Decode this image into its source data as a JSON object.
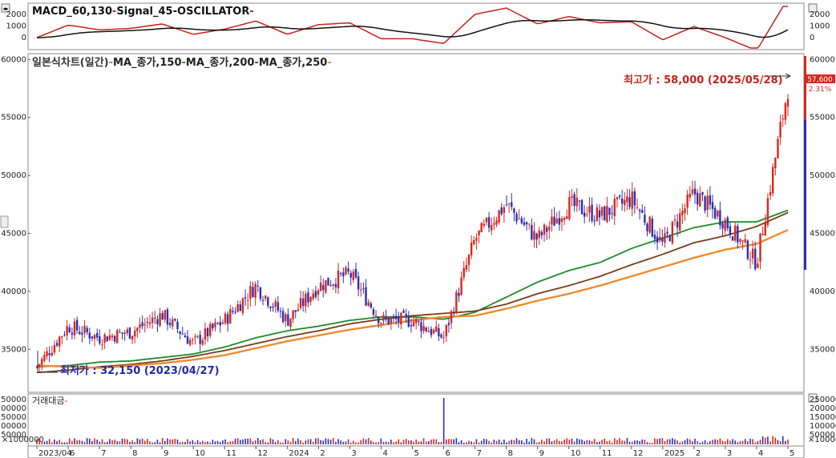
{
  "macd_panel": {
    "title_parts": [
      {
        "text": "MACD_60,130",
        "color": "#111111"
      },
      {
        "text": "Signal_45",
        "color": "#111111"
      },
      {
        "text": "OSCILLATOR",
        "color": "#111111"
      }
    ],
    "y_ticks": [
      "2000",
      "1000",
      "0"
    ],
    "ylim": [
      -900,
      2700
    ],
    "series": [
      {
        "name": "MACD_60,130",
        "color": "#c8201a"
      },
      {
        "name": "Signal_45",
        "color": "#111111"
      }
    ]
  },
  "price_panel": {
    "title_parts": [
      {
        "text": "일본식차트(일간)",
        "color": "#333333"
      },
      {
        "text": "MA_종가,150",
        "color": "#222222"
      },
      {
        "text": "MA_종가,200",
        "color": "#222222"
      },
      {
        "text": "MA_종가,250",
        "color": "#222222"
      }
    ],
    "ma_colors": [
      "#1d8a2a",
      "#7b3a17",
      "#f08a2e"
    ],
    "y_ticks": [
      "60000",
      "55000",
      "50000",
      "45000",
      "40000",
      "35000"
    ],
    "ylim": [
      31500,
      60300
    ],
    "high_label": "최고가 : 58,000 (2025/05/28)",
    "low_label": "최저가 : 32,150 (2023/04/27)",
    "current_price": "57,600",
    "current_change": "2.31%",
    "up_color": "#d7261c",
    "down_color": "#2a2fb8"
  },
  "volume_panel": {
    "title": "거래대금",
    "y_ticks": [
      "250000",
      "200000",
      "150000",
      "100000",
      "50000"
    ],
    "unit_label": "×1000000"
  },
  "x_axis": {
    "labels": [
      "2023/04",
      "6",
      "7",
      "8",
      "9",
      "10",
      "11",
      "12",
      "2024",
      "2",
      "3",
      "4",
      "5",
      "6",
      "7",
      "8",
      "9",
      "10",
      "11",
      "12",
      "2025",
      "2",
      "3",
      "4",
      "5"
    ]
  },
  "chart_data": {
    "type": "line",
    "x": [
      "2023/04",
      "2023/06",
      "2023/07",
      "2023/08",
      "2023/09",
      "2023/10",
      "2023/11",
      "2023/12",
      "2024/01",
      "2024/02",
      "2024/03",
      "2024/04",
      "2024/05",
      "2024/06",
      "2024/07",
      "2024/08",
      "2024/09",
      "2024/10",
      "2024/11",
      "2024/12",
      "2025/01",
      "2025/02",
      "2025/03",
      "2025/04",
      "2025/05"
    ],
    "series": [
      {
        "name": "일본식차트(일간)",
        "values": [
          33500,
          37000,
          36000,
          36500,
          38000,
          35500,
          37500,
          40500,
          37500,
          40500,
          41500,
          37500,
          37500,
          36000,
          44500,
          47500,
          44500,
          47500,
          46500,
          48000,
          44000,
          48500,
          46000,
          42500,
          57600
        ]
      },
      {
        "name": "MA_종가,150",
        "values": [
          33500,
          33600,
          33900,
          34000,
          34300,
          34600,
          35200,
          36000,
          36600,
          37000,
          37500,
          37800,
          37800,
          37600,
          38200,
          39500,
          40800,
          41800,
          42500,
          43700,
          44600,
          45500,
          46000,
          46000,
          47000
        ]
      },
      {
        "name": "MA_종가,200",
        "values": [
          33000,
          33200,
          33500,
          33700,
          34000,
          34400,
          34900,
          35500,
          36100,
          36600,
          37200,
          37600,
          37900,
          38100,
          38300,
          38900,
          39800,
          40500,
          41300,
          42300,
          43200,
          44200,
          44800,
          45600,
          46800
        ]
      },
      {
        "name": "MA_종가,250",
        "values": [
          33600,
          33500,
          33400,
          33600,
          33800,
          34100,
          34500,
          35100,
          35700,
          36200,
          36700,
          37100,
          37500,
          37800,
          37900,
          38500,
          39200,
          39800,
          40500,
          41300,
          42100,
          42900,
          43600,
          44100,
          45300
        ]
      }
    ],
    "ylim": [
      31500,
      60300
    ]
  }
}
